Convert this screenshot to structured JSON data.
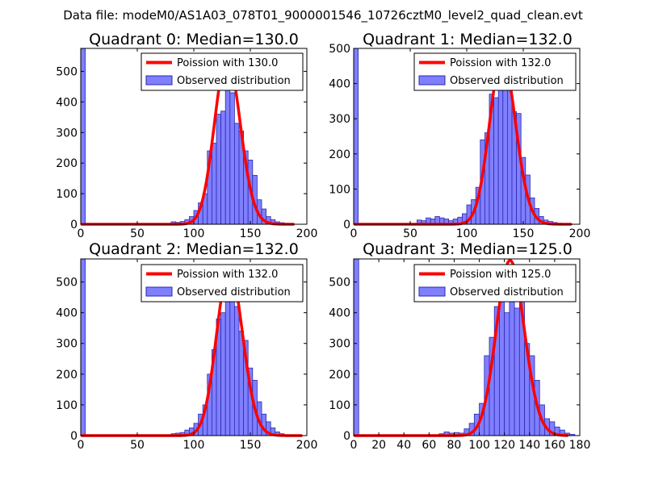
{
  "suptitle": "Data file: modeM0/AS1A03_078T01_9000001546_10726cztM0_level2_quad_clean.evt",
  "legend": {
    "observed_label": "Observed distribution"
  },
  "colors": {
    "poisson": "#ff0000",
    "hist_fill": "#7f7fff",
    "hist_edge": "#2a2ab0",
    "axes": "#000000"
  },
  "chart_data": [
    {
      "type": "histogram+line",
      "title": "Quadrant 0: Median=130.0",
      "legend_poisson": "Poission with 130.0",
      "xlim": [
        0,
        200
      ],
      "ylim": [
        0,
        575
      ],
      "xticks": [
        0,
        50,
        100,
        150,
        200
      ],
      "yticks": [
        0,
        100,
        200,
        300,
        400,
        500
      ],
      "bin_width": 4,
      "bins": [
        [
          0,
          575
        ],
        [
          72,
          3
        ],
        [
          80,
          8
        ],
        [
          84,
          6
        ],
        [
          88,
          9
        ],
        [
          92,
          15
        ],
        [
          96,
          25
        ],
        [
          100,
          45
        ],
        [
          104,
          70
        ],
        [
          108,
          100
        ],
        [
          112,
          240
        ],
        [
          116,
          265
        ],
        [
          120,
          360
        ],
        [
          124,
          370
        ],
        [
          128,
          480
        ],
        [
          132,
          430
        ],
        [
          136,
          330
        ],
        [
          140,
          305
        ],
        [
          144,
          240
        ],
        [
          148,
          210
        ],
        [
          152,
          160
        ],
        [
          156,
          80
        ],
        [
          160,
          50
        ],
        [
          164,
          25
        ],
        [
          168,
          15
        ],
        [
          172,
          8
        ],
        [
          176,
          5
        ],
        [
          180,
          3
        ]
      ],
      "poisson": {
        "mu": 130,
        "peak": 545,
        "x_start": 1,
        "x_end": 188
      }
    },
    {
      "type": "histogram+line",
      "title": "Quadrant 1: Median=132.0",
      "legend_poisson": "Poission with 132.0",
      "xlim": [
        0,
        200
      ],
      "ylim": [
        0,
        500
      ],
      "xticks": [
        0,
        50,
        100,
        150,
        200
      ],
      "yticks": [
        0,
        100,
        200,
        300,
        400,
        500
      ],
      "bin_width": 4,
      "bins": [
        [
          0,
          500
        ],
        [
          56,
          12
        ],
        [
          60,
          10
        ],
        [
          64,
          18
        ],
        [
          68,
          15
        ],
        [
          72,
          22
        ],
        [
          76,
          18
        ],
        [
          80,
          15
        ],
        [
          84,
          10
        ],
        [
          88,
          15
        ],
        [
          92,
          20
        ],
        [
          96,
          30
        ],
        [
          100,
          55
        ],
        [
          104,
          70
        ],
        [
          108,
          105
        ],
        [
          112,
          240
        ],
        [
          116,
          260
        ],
        [
          120,
          370
        ],
        [
          124,
          360
        ],
        [
          128,
          460
        ],
        [
          132,
          450
        ],
        [
          136,
          390
        ],
        [
          140,
          320
        ],
        [
          144,
          315
        ],
        [
          148,
          190
        ],
        [
          152,
          140
        ],
        [
          156,
          75
        ],
        [
          160,
          45
        ],
        [
          164,
          22
        ],
        [
          168,
          12
        ],
        [
          172,
          8
        ],
        [
          176,
          5
        ],
        [
          180,
          3
        ]
      ],
      "poisson": {
        "mu": 132,
        "peak": 475,
        "x_start": 1,
        "x_end": 192
      }
    },
    {
      "type": "histogram+line",
      "title": "Quadrant 2: Median=132.0",
      "legend_poisson": "Poission with 132.0",
      "xlim": [
        0,
        200
      ],
      "ylim": [
        0,
        575
      ],
      "xticks": [
        0,
        50,
        100,
        150,
        200
      ],
      "yticks": [
        0,
        100,
        200,
        300,
        400,
        500
      ],
      "bin_width": 4,
      "bins": [
        [
          0,
          575
        ],
        [
          72,
          3
        ],
        [
          80,
          6
        ],
        [
          84,
          8
        ],
        [
          88,
          10
        ],
        [
          92,
          18
        ],
        [
          96,
          25
        ],
        [
          100,
          40
        ],
        [
          104,
          70
        ],
        [
          108,
          100
        ],
        [
          112,
          200
        ],
        [
          116,
          280
        ],
        [
          120,
          380
        ],
        [
          124,
          400
        ],
        [
          128,
          480
        ],
        [
          132,
          460
        ],
        [
          136,
          420
        ],
        [
          140,
          340
        ],
        [
          144,
          310
        ],
        [
          148,
          220
        ],
        [
          152,
          180
        ],
        [
          156,
          110
        ],
        [
          160,
          70
        ],
        [
          164,
          45
        ],
        [
          168,
          25
        ],
        [
          172,
          12
        ],
        [
          176,
          6
        ],
        [
          180,
          3
        ]
      ],
      "poisson": {
        "mu": 132,
        "peak": 545,
        "x_start": 1,
        "x_end": 195
      }
    },
    {
      "type": "histogram+line",
      "title": "Quadrant 3: Median=125.0",
      "legend_poisson": "Poission with 125.0",
      "xlim": [
        0,
        180
      ],
      "ylim": [
        0,
        575
      ],
      "xticks": [
        0,
        20,
        40,
        60,
        80,
        100,
        120,
        140,
        160,
        180
      ],
      "yticks": [
        0,
        100,
        200,
        300,
        400,
        500
      ],
      "bin_width": 4,
      "bins": [
        [
          0,
          575
        ],
        [
          68,
          6
        ],
        [
          72,
          12
        ],
        [
          76,
          8
        ],
        [
          80,
          10
        ],
        [
          84,
          8
        ],
        [
          88,
          22
        ],
        [
          92,
          40
        ],
        [
          96,
          70
        ],
        [
          100,
          105
        ],
        [
          104,
          260
        ],
        [
          108,
          320
        ],
        [
          112,
          420
        ],
        [
          116,
          460
        ],
        [
          120,
          400
        ],
        [
          124,
          470
        ],
        [
          128,
          415
        ],
        [
          132,
          450
        ],
        [
          136,
          300
        ],
        [
          140,
          260
        ],
        [
          144,
          180
        ],
        [
          148,
          100
        ],
        [
          152,
          55
        ],
        [
          156,
          45
        ],
        [
          160,
          28
        ],
        [
          164,
          18
        ],
        [
          168,
          8
        ],
        [
          172,
          4
        ]
      ],
      "poisson": {
        "mu": 125,
        "peak": 570,
        "x_start": 1,
        "x_end": 170
      }
    }
  ]
}
